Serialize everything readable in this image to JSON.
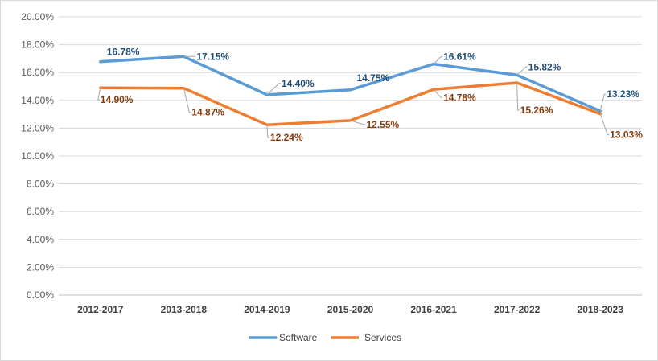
{
  "chart_data": {
    "type": "line",
    "categories": [
      "2012-2017",
      "2013-2018",
      "2014-2019",
      "2015-2020",
      "2016-2021",
      "2017-2022",
      "2018-2023"
    ],
    "series": [
      {
        "name": "Software",
        "color": "#5b9bd5",
        "label_color": "#1f4e79",
        "values": [
          16.78,
          17.15,
          14.4,
          14.75,
          16.61,
          15.82,
          13.23
        ],
        "labels": [
          "16.78%",
          "17.15%",
          "14.40%",
          "14.75%",
          "16.61%",
          "15.82%",
          "13.23%"
        ]
      },
      {
        "name": "Services",
        "color": "#ed7d31",
        "label_color": "#843c0c",
        "values": [
          14.9,
          14.87,
          12.24,
          12.55,
          14.78,
          15.26,
          13.03
        ],
        "labels": [
          "14.90%",
          "14.87%",
          "12.24%",
          "12.55%",
          "14.78%",
          "15.26%",
          "13.03%"
        ]
      }
    ],
    "ylim": [
      0,
      20
    ],
    "yticks": [
      "0.00%",
      "2.00%",
      "4.00%",
      "6.00%",
      "8.00%",
      "10.00%",
      "12.00%",
      "14.00%",
      "16.00%",
      "18.00%",
      "20.00%"
    ],
    "grid": true,
    "legend": "bottom",
    "title": "",
    "xlabel": "",
    "ylabel": ""
  }
}
